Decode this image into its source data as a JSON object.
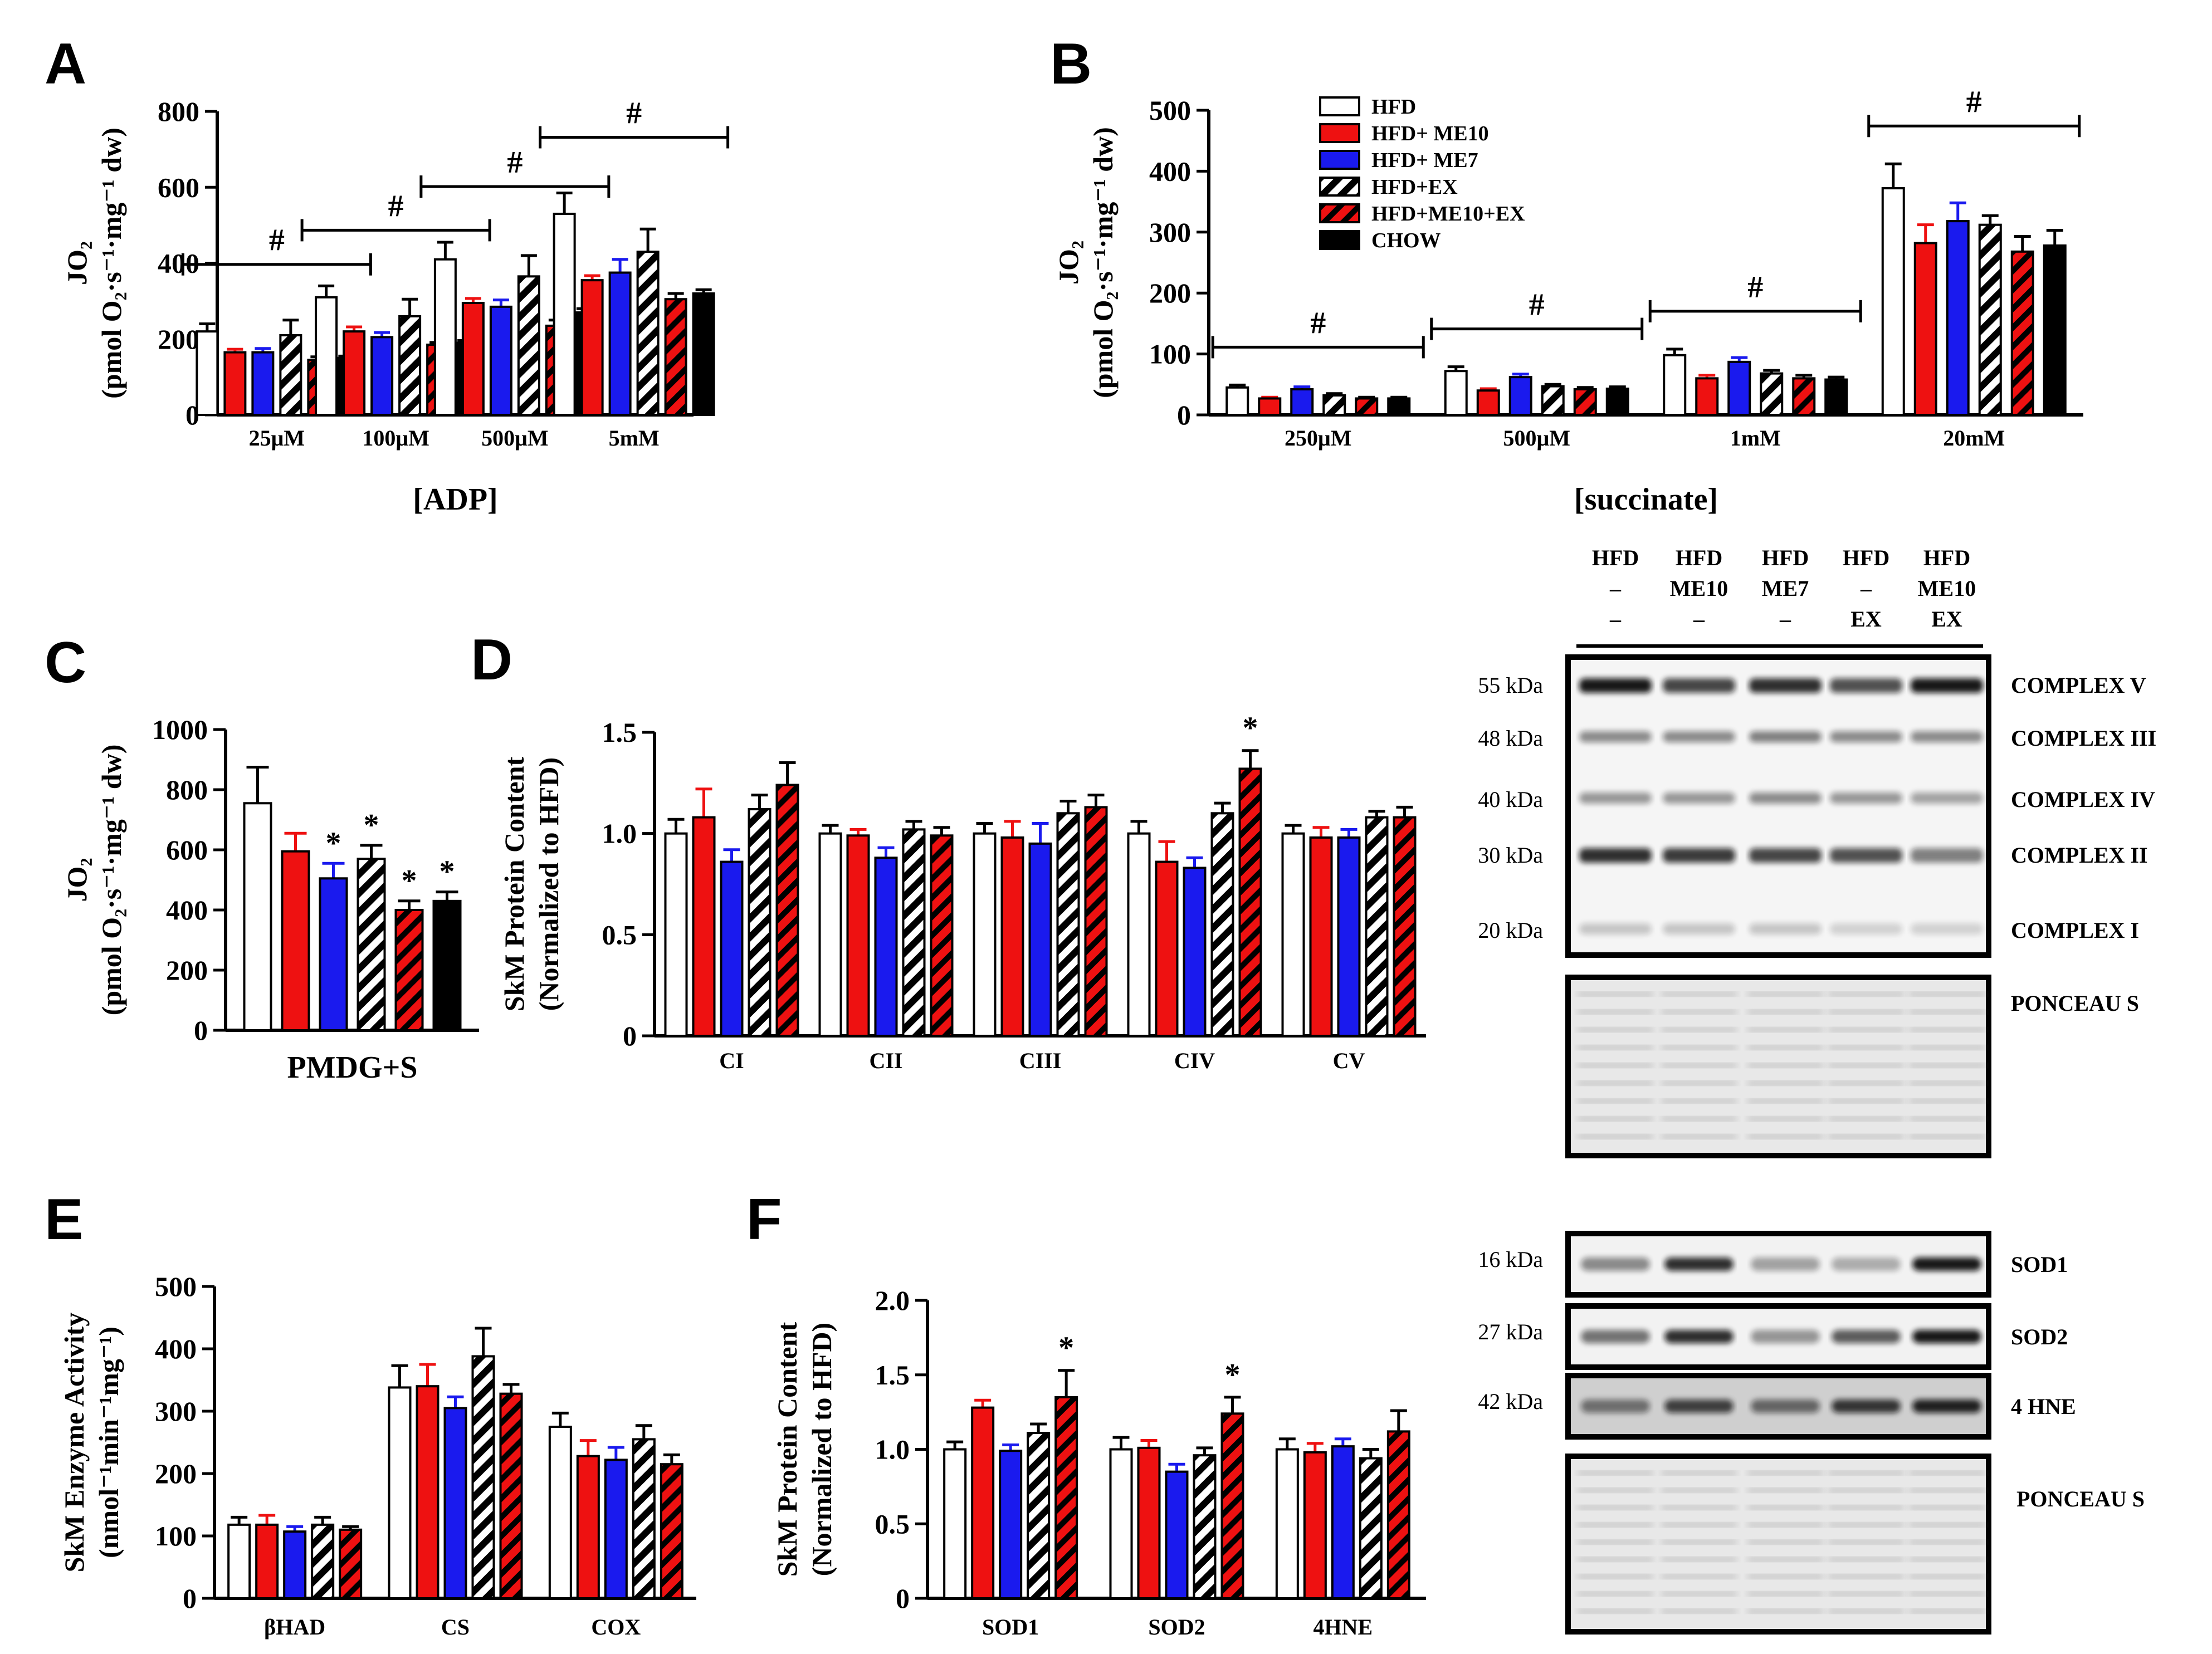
{
  "colors": {
    "HFD": "#ffffff",
    "HFD+ ME10": "#ee1111",
    "HFD+ ME7": "#1a1aee",
    "HFD+EX": "hatch-black",
    "HFD+ME10+EX": "hatch-red",
    "CHOW": "#000000"
  },
  "chart_data": [
    {
      "id": "A",
      "type": "bar",
      "panel_label": "A",
      "ylabel_line1": "JO₂",
      "ylabel_line2": "(pmol O₂·s⁻¹·mg⁻¹ dw)",
      "xlabel": "[ADP]",
      "ylim": [
        0,
        800
      ],
      "yticks": [
        0,
        200,
        400,
        600,
        800
      ],
      "categories": [
        "25μM",
        "100μM",
        "500μM",
        "5mM"
      ],
      "series": [
        {
          "name": "HFD",
          "values": [
            220,
            310,
            410,
            530
          ],
          "errors": [
            20,
            30,
            45,
            55
          ]
        },
        {
          "name": "HFD+ ME10",
          "values": [
            165,
            220,
            295,
            355
          ],
          "errors": [
            8,
            12,
            12,
            12
          ]
        },
        {
          "name": "HFD+ ME7",
          "values": [
            165,
            205,
            285,
            375
          ],
          "errors": [
            10,
            12,
            18,
            35
          ]
        },
        {
          "name": "HFD+EX",
          "values": [
            210,
            260,
            365,
            430
          ],
          "errors": [
            40,
            45,
            55,
            60
          ]
        },
        {
          "name": "HFD+ME10+EX",
          "values": [
            145,
            185,
            235,
            305
          ],
          "errors": [
            8,
            6,
            15,
            15
          ]
        },
        {
          "name": "CHOW",
          "values": [
            150,
            190,
            270,
            320
          ],
          "errors": [
            5,
            6,
            10,
            10
          ]
        }
      ],
      "significance": [
        {
          "category": "25μM",
          "symbol": "#"
        },
        {
          "category": "100μM",
          "symbol": "#"
        },
        {
          "category": "500μM",
          "symbol": "#"
        },
        {
          "category": "5mM",
          "symbol": "#"
        }
      ]
    },
    {
      "id": "B",
      "type": "bar",
      "panel_label": "B",
      "ylabel_line1": "JO₂",
      "ylabel_line2": "(pmol O₂·s⁻¹·mg⁻¹ dw)",
      "xlabel": "[succinate]",
      "ylim": [
        0,
        500
      ],
      "yticks": [
        0,
        100,
        200,
        300,
        400,
        500
      ],
      "categories": [
        "250μM",
        "500μM",
        "1mM",
        "20mM"
      ],
      "legend": [
        "HFD",
        "HFD+ ME10",
        "HFD+ ME7",
        "HFD+EX",
        "HFD+ME10+EX",
        "CHOW"
      ],
      "series": [
        {
          "name": "HFD",
          "values": [
            45,
            72,
            98,
            372
          ],
          "errors": [
            4,
            7,
            10,
            40
          ]
        },
        {
          "name": "HFD+ ME10",
          "values": [
            27,
            40,
            60,
            282
          ],
          "errors": [
            2,
            3,
            5,
            30
          ]
        },
        {
          "name": "HFD+ ME7",
          "values": [
            42,
            62,
            87,
            318
          ],
          "errors": [
            4,
            5,
            7,
            30
          ]
        },
        {
          "name": "HFD+EX",
          "values": [
            32,
            47,
            68,
            312
          ],
          "errors": [
            3,
            3,
            5,
            15
          ]
        },
        {
          "name": "HFD+ME10+EX",
          "values": [
            27,
            42,
            60,
            268
          ],
          "errors": [
            2,
            3,
            5,
            25
          ]
        },
        {
          "name": "CHOW",
          "values": [
            27,
            43,
            58,
            278
          ],
          "errors": [
            2,
            3,
            4,
            25
          ]
        }
      ],
      "significance": [
        {
          "category": "250μM",
          "symbol": "#"
        },
        {
          "category": "500μM",
          "symbol": "#"
        },
        {
          "category": "1mM",
          "symbol": "#"
        },
        {
          "category": "20mM",
          "symbol": "#"
        }
      ]
    },
    {
      "id": "C",
      "type": "bar",
      "panel_label": "C",
      "ylabel_line1": "JO₂",
      "ylabel_line2": "(pmol O₂·s⁻¹·mg⁻¹ dw)",
      "xlabel": "PMDG+S",
      "ylim": [
        0,
        1000
      ],
      "yticks": [
        0,
        200,
        400,
        600,
        800,
        1000
      ],
      "categories": [
        "PMDG+S"
      ],
      "series": [
        {
          "name": "HFD",
          "values": [
            755
          ],
          "errors": [
            120
          ]
        },
        {
          "name": "HFD+ ME10",
          "values": [
            595
          ],
          "errors": [
            60
          ]
        },
        {
          "name": "HFD+ ME7",
          "values": [
            505
          ],
          "errors": [
            50
          ],
          "sig": "*"
        },
        {
          "name": "HFD+EX",
          "values": [
            570
          ],
          "errors": [
            45
          ],
          "sig": "*"
        },
        {
          "name": "HFD+ME10+EX",
          "values": [
            400
          ],
          "errors": [
            30
          ],
          "sig": "*"
        },
        {
          "name": "CHOW",
          "values": [
            430
          ],
          "errors": [
            30
          ],
          "sig": "*"
        }
      ]
    },
    {
      "id": "D",
      "type": "bar",
      "panel_label": "D",
      "ylabel_line1": "SkM Protein Content",
      "ylabel_line2": "(Normalized to HFD)",
      "ylim": [
        0,
        1.5
      ],
      "yticks": [
        0,
        0.5,
        1.0,
        1.5
      ],
      "ytick_labels": [
        "0",
        "0.5",
        "1.0",
        "1.5"
      ],
      "categories": [
        "CI",
        "CII",
        "CIII",
        "CIV",
        "CV"
      ],
      "series": [
        {
          "name": "HFD",
          "values": [
            1.0,
            1.0,
            1.0,
            1.0,
            1.0
          ],
          "errors": [
            0.07,
            0.04,
            0.05,
            0.06,
            0.04
          ]
        },
        {
          "name": "HFD+ ME10",
          "values": [
            1.08,
            0.99,
            0.98,
            0.86,
            0.98
          ],
          "errors": [
            0.14,
            0.03,
            0.08,
            0.1,
            0.05
          ]
        },
        {
          "name": "HFD+ ME7",
          "values": [
            0.86,
            0.88,
            0.95,
            0.83,
            0.98
          ],
          "errors": [
            0.06,
            0.05,
            0.1,
            0.05,
            0.04
          ]
        },
        {
          "name": "HFD+EX",
          "values": [
            1.12,
            1.02,
            1.1,
            1.1,
            1.08
          ],
          "errors": [
            0.07,
            0.04,
            0.06,
            0.05,
            0.03
          ]
        },
        {
          "name": "HFD+ME10+EX",
          "values": [
            1.24,
            0.99,
            1.13,
            1.32,
            1.08
          ],
          "errors": [
            0.11,
            0.04,
            0.06,
            0.09,
            0.05
          ]
        }
      ],
      "significance": [
        {
          "category": "CIV",
          "series": "HFD+ME10+EX",
          "symbol": "*"
        }
      ]
    },
    {
      "id": "E",
      "type": "bar",
      "panel_label": "E",
      "ylabel_line1": "SkM Enzyme Activity",
      "ylabel_line2": "(nmol⁻¹min⁻¹mg⁻¹)",
      "ylim": [
        0,
        500
      ],
      "yticks": [
        0,
        100,
        200,
        300,
        400,
        500
      ],
      "categories": [
        "βHAD",
        "CS",
        "COX"
      ],
      "series": [
        {
          "name": "HFD",
          "values": [
            118,
            338,
            275
          ],
          "errors": [
            12,
            35,
            22
          ]
        },
        {
          "name": "HFD+ ME10",
          "values": [
            118,
            340,
            228
          ],
          "errors": [
            15,
            35,
            25
          ]
        },
        {
          "name": "HFD+ ME7",
          "values": [
            107,
            305,
            222
          ],
          "errors": [
            8,
            18,
            20
          ]
        },
        {
          "name": "HFD+EX",
          "values": [
            118,
            388,
            255
          ],
          "errors": [
            12,
            45,
            22
          ]
        },
        {
          "name": "HFD+ME10+EX",
          "values": [
            110,
            328,
            215
          ],
          "errors": [
            5,
            15,
            15
          ]
        }
      ]
    },
    {
      "id": "F",
      "type": "bar",
      "panel_label": "F",
      "ylabel_line1": "SkM Protein Content",
      "ylabel_line2": "(Normalized to HFD)",
      "ylim": [
        0,
        2.0
      ],
      "yticks": [
        0,
        0.5,
        1.0,
        1.5,
        2.0
      ],
      "ytick_labels": [
        "0",
        "0.5",
        "1.0",
        "1.5",
        "2.0"
      ],
      "categories": [
        "SOD1",
        "SOD2",
        "4HNE"
      ],
      "series": [
        {
          "name": "HFD",
          "values": [
            1.0,
            1.0,
            1.0
          ],
          "errors": [
            0.05,
            0.08,
            0.07
          ]
        },
        {
          "name": "HFD+ ME10",
          "values": [
            1.28,
            1.01,
            0.98
          ],
          "errors": [
            0.05,
            0.05,
            0.06
          ]
        },
        {
          "name": "HFD+ ME7",
          "values": [
            0.99,
            0.85,
            1.02
          ],
          "errors": [
            0.04,
            0.05,
            0.05
          ]
        },
        {
          "name": "HFD+EX",
          "values": [
            1.11,
            0.96,
            0.94
          ],
          "errors": [
            0.06,
            0.05,
            0.06
          ]
        },
        {
          "name": "HFD+ME10+EX",
          "values": [
            1.35,
            1.24,
            1.12
          ],
          "errors": [
            0.18,
            0.11,
            0.14
          ]
        }
      ],
      "significance": [
        {
          "category": "SOD1",
          "series": "HFD+ME10+EX",
          "symbol": "*"
        },
        {
          "category": "SOD2",
          "series": "HFD+ME10+EX",
          "symbol": "*"
        }
      ]
    }
  ],
  "blot_top": {
    "header_rows": [
      [
        "HFD",
        "HFD",
        "HFD",
        "HFD",
        "HFD"
      ],
      [
        "–",
        "ME10",
        "ME7",
        "–",
        "ME10"
      ],
      [
        "–",
        "–",
        "–",
        "EX",
        "EX"
      ]
    ],
    "bands": [
      {
        "label": "COMPLEX V",
        "kda": "55 kDa"
      },
      {
        "label": "COMPLEX III",
        "kda": "48 kDa"
      },
      {
        "label": "COMPLEX IV",
        "kda": "40 kDa"
      },
      {
        "label": "COMPLEX II",
        "kda": "30 kDa"
      },
      {
        "label": "COMPLEX I",
        "kda": "20 kDa"
      }
    ],
    "stain_label": "PONCEAU S"
  },
  "blot_bottom": {
    "rows": [
      {
        "label": "SOD1",
        "kda": "16 kDa"
      },
      {
        "label": "SOD2",
        "kda": "27 kDa"
      },
      {
        "label": "4 HNE",
        "kda": "42 kDa"
      }
    ],
    "stain_label": "PONCEAU S"
  }
}
